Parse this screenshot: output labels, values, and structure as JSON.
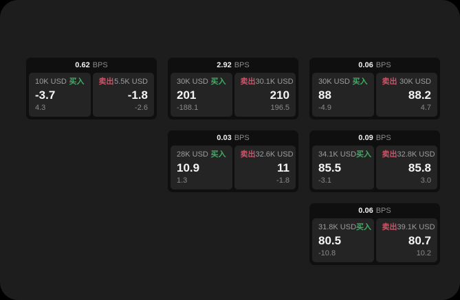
{
  "labels": {
    "bps_unit": "BPS",
    "buy": "买入",
    "sell": "卖出"
  },
  "colors": {
    "outer_background": "#000000",
    "surface_background": "#1d1d1d",
    "card_background": "#0f0f0f",
    "panel_background": "#242424",
    "buy_green": "#3fae63",
    "sell_red": "#cb5468",
    "text_primary": "#f2f2f2",
    "text_secondary": "#9e9e9e",
    "text_tertiary": "#8a8a8a"
  },
  "cards": [
    {
      "bps": "0.62",
      "row": 1,
      "col": 1,
      "buy": {
        "amount": "10K USD",
        "price": "-3.7",
        "delta": "4.3"
      },
      "sell": {
        "amount": "5.5K USD",
        "price": "-1.8",
        "delta": "-2.6"
      }
    },
    {
      "bps": "2.92",
      "row": 1,
      "col": 2,
      "buy": {
        "amount": "30K USD",
        "price": "201",
        "delta": "-188.1"
      },
      "sell": {
        "amount": "30.1K USD",
        "price": "210",
        "delta": "196.5"
      }
    },
    {
      "bps": "0.06",
      "row": 1,
      "col": 3,
      "buy": {
        "amount": "30K USD",
        "price": "88",
        "delta": "-4.9"
      },
      "sell": {
        "amount": "30K USD",
        "price": "88.2",
        "delta": "4.7"
      }
    },
    {
      "bps": "0.03",
      "row": 2,
      "col": 2,
      "buy": {
        "amount": "28K USD",
        "price": "10.9",
        "delta": "1.3"
      },
      "sell": {
        "amount": "32.6K USD",
        "price": "11",
        "delta": "-1.8"
      }
    },
    {
      "bps": "0.09",
      "row": 2,
      "col": 3,
      "buy": {
        "amount": "34.1K USD",
        "price": "85.5",
        "delta": "-3.1"
      },
      "sell": {
        "amount": "32.8K USD",
        "price": "85.8",
        "delta": "3.0"
      }
    },
    {
      "bps": "0.06",
      "row": 3,
      "col": 3,
      "buy": {
        "amount": "31.8K USD",
        "price": "80.5",
        "delta": "-10.8"
      },
      "sell": {
        "amount": "39.1K USD",
        "price": "80.7",
        "delta": "10.2"
      }
    }
  ]
}
